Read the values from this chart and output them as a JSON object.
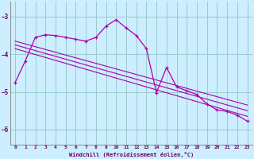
{
  "xlabel": "Windchill (Refroidissement éolien,°C)",
  "background_color": "#cceeff",
  "line_color": "#aa00aa",
  "grid_color": "#99cccc",
  "text_color": "#660066",
  "xlim": [
    -0.5,
    23.5
  ],
  "ylim": [
    -6.4,
    -2.6
  ],
  "yticks": [
    -6,
    -5,
    -4,
    -3
  ],
  "xticks": [
    0,
    1,
    2,
    3,
    4,
    5,
    6,
    7,
    8,
    9,
    10,
    11,
    12,
    13,
    14,
    15,
    16,
    17,
    18,
    19,
    20,
    21,
    22,
    23
  ],
  "series1_x": [
    0,
    1,
    2,
    3,
    4,
    5,
    6,
    7,
    8,
    9,
    10,
    11,
    12,
    13,
    14,
    15,
    16,
    17,
    18,
    19,
    20,
    21,
    22,
    23
  ],
  "series1_y": [
    -4.75,
    -4.18,
    -3.55,
    -3.48,
    -3.5,
    -3.55,
    -3.6,
    -3.65,
    -3.55,
    -3.25,
    -3.08,
    -3.3,
    -3.5,
    -3.85,
    -5.02,
    -4.35,
    -4.87,
    -4.97,
    -5.07,
    -5.32,
    -5.48,
    -5.52,
    -5.62,
    -5.78
  ],
  "series2_x": [
    0,
    23
  ],
  "series2_y": [
    -3.65,
    -5.35
  ],
  "series3_x": [
    0,
    23
  ],
  "series3_y": [
    -3.75,
    -5.5
  ],
  "series4_x": [
    0,
    23
  ],
  "series4_y": [
    -3.85,
    -5.65
  ]
}
